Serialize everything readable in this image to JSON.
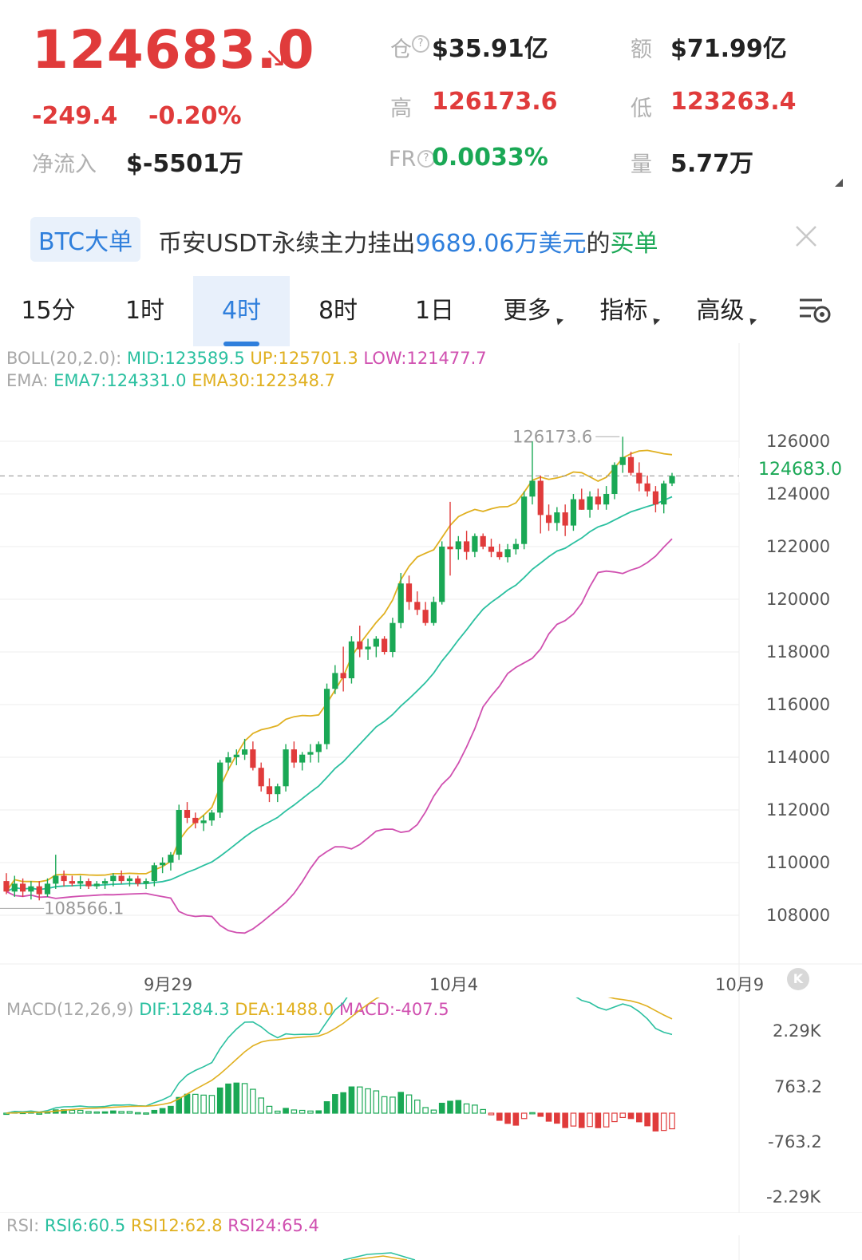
{
  "ticker": {
    "price": "124683.0",
    "arrow": "↘",
    "change": "-249.4",
    "change_pct": "-0.20%",
    "net_inflow_label": "净流入",
    "net_inflow_value": "$-5501万",
    "open_interest_label": "仓",
    "open_interest_value": "$35.91亿",
    "turnover_label": "额",
    "turnover_value": "$71.99亿",
    "high_label": "高",
    "high_value": "126173.6",
    "low_label": "低",
    "low_value": "123263.4",
    "fr_label": "FR",
    "fr_value": "0.0033%",
    "volume_label": "量",
    "volume_value": "5.77万"
  },
  "banner": {
    "tag": "BTC大单",
    "text_prefix": "币安USDT永续主力挂出",
    "amount": "9689.06万美元",
    "text_mid": "的",
    "side": "买单"
  },
  "tabs": [
    "15分",
    "1时",
    "4时",
    "8时",
    "1日",
    "更多",
    "指标",
    "高级"
  ],
  "active_tab": "4时",
  "indicators": {
    "boll_name": "BOLL(20,2.0):",
    "boll_mid": "MID:123589.5",
    "boll_up": "UP:125701.3",
    "boll_low": "LOW:121477.7",
    "ema_name": "EMA:",
    "ema7": "EMA7:124331.0",
    "ema30": "EMA30:122348.7",
    "macd_name": "MACD(12,26,9)",
    "dif": "DIF:1284.3",
    "dea": "DEA:1488.0",
    "macd": "MACD:-407.5",
    "rsi_name": "RSI:",
    "rsi6": "RSI6:60.5",
    "rsi12": "RSI12:62.8",
    "rsi24": "RSI24:65.4"
  },
  "colors": {
    "up": "#1aa855",
    "down": "#e03b3b",
    "boll_mid": "#2bc0a0",
    "boll_up_low": "#e0b020",
    "boll_low": "#d050b0",
    "accent": "#2f7fdc"
  },
  "chart_data": {
    "type": "candlestick",
    "y_ticks": [
      "126000",
      "124000",
      "122000",
      "120000",
      "118000",
      "116000",
      "114000",
      "112000",
      "110000",
      "108000"
    ],
    "ylim": [
      107000,
      127000
    ],
    "x_ticks": [
      "9月29",
      "10月4",
      "10月9"
    ],
    "last_price": "124683.0",
    "high_marker": "126173.6",
    "low_marker": "108566.1",
    "candles": [
      [
        109300,
        109600,
        108800,
        108900
      ],
      [
        108900,
        109500,
        108700,
        109200
      ],
      [
        109200,
        109400,
        108700,
        108900
      ],
      [
        108900,
        109300,
        108600,
        109100
      ],
      [
        109100,
        109300,
        108566,
        108800
      ],
      [
        108800,
        109400,
        108700,
        109200
      ],
      [
        109200,
        110300,
        109000,
        109500
      ],
      [
        109500,
        109700,
        109100,
        109300
      ],
      [
        109300,
        109500,
        109100,
        109200
      ],
      [
        109200,
        109500,
        109000,
        109300
      ],
      [
        109300,
        109400,
        109000,
        109100
      ],
      [
        109100,
        109300,
        109000,
        109200
      ],
      [
        109200,
        109400,
        109000,
        109300
      ],
      [
        109300,
        109600,
        109100,
        109500
      ],
      [
        109500,
        109700,
        109200,
        109300
      ],
      [
        109300,
        109500,
        109100,
        109400
      ],
      [
        109400,
        109500,
        109100,
        109200
      ],
      [
        109200,
        109400,
        109000,
        109300
      ],
      [
        109300,
        110000,
        109100,
        109900
      ],
      [
        109900,
        110200,
        109600,
        110000
      ],
      [
        110000,
        110400,
        109700,
        110300
      ],
      [
        110300,
        112200,
        110100,
        112000
      ],
      [
        112000,
        112300,
        111500,
        111700
      ],
      [
        111700,
        111900,
        111300,
        111500
      ],
      [
        111500,
        111800,
        111200,
        111600
      ],
      [
        111600,
        112000,
        111400,
        111900
      ],
      [
        111900,
        113900,
        111700,
        113800
      ],
      [
        113800,
        114200,
        113500,
        114000
      ],
      [
        114000,
        114300,
        113700,
        114100
      ],
      [
        114100,
        114700,
        113900,
        114300
      ],
      [
        114300,
        114600,
        113500,
        113600
      ],
      [
        113600,
        113800,
        112700,
        112900
      ],
      [
        112900,
        113200,
        112300,
        112600
      ],
      [
        112600,
        113000,
        112300,
        112900
      ],
      [
        112900,
        114500,
        112700,
        114300
      ],
      [
        114300,
        114600,
        113600,
        113800
      ],
      [
        113800,
        114200,
        113500,
        114100
      ],
      [
        114100,
        114500,
        113800,
        114200
      ],
      [
        114200,
        114600,
        113800,
        114500
      ],
      [
        114500,
        116800,
        114300,
        116600
      ],
      [
        116600,
        117500,
        116400,
        117200
      ],
      [
        117200,
        118200,
        116500,
        117000
      ],
      [
        117000,
        118600,
        116800,
        118400
      ],
      [
        118400,
        119000,
        117800,
        118100
      ],
      [
        118100,
        118500,
        117700,
        118200
      ],
      [
        118200,
        118600,
        117800,
        118500
      ],
      [
        118500,
        118600,
        117900,
        118000
      ],
      [
        118000,
        119300,
        117800,
        119100
      ],
      [
        119100,
        121000,
        118900,
        120600
      ],
      [
        120600,
        120900,
        119600,
        119900
      ],
      [
        119900,
        120300,
        119400,
        119600
      ],
      [
        119600,
        119900,
        119000,
        119100
      ],
      [
        119100,
        120100,
        119000,
        119900
      ],
      [
        119900,
        122200,
        119800,
        122000
      ],
      [
        122000,
        123700,
        120900,
        121900
      ],
      [
        121900,
        122400,
        121500,
        122200
      ],
      [
        122200,
        122600,
        121500,
        121800
      ],
      [
        121800,
        122500,
        121600,
        122400
      ],
      [
        122400,
        122500,
        121900,
        122000
      ],
      [
        122000,
        122300,
        121600,
        121800
      ],
      [
        121800,
        122100,
        121500,
        121600
      ],
      [
        121600,
        122100,
        121400,
        121900
      ],
      [
        121900,
        122300,
        121700,
        122100
      ],
      [
        122100,
        124100,
        121900,
        123900
      ],
      [
        123900,
        126000,
        123600,
        124500
      ],
      [
        124500,
        124700,
        122500,
        123200
      ],
      [
        123200,
        123600,
        122600,
        122900
      ],
      [
        122900,
        123500,
        122600,
        123300
      ],
      [
        123300,
        123600,
        122400,
        122800
      ],
      [
        122800,
        124000,
        122600,
        123800
      ],
      [
        123800,
        124200,
        123400,
        123400
      ],
      [
        123400,
        124100,
        123100,
        123900
      ],
      [
        123900,
        124200,
        123400,
        123600
      ],
      [
        123600,
        124300,
        123400,
        124000
      ],
      [
        124000,
        125200,
        123800,
        125100
      ],
      [
        125100,
        126174,
        124800,
        125400
      ],
      [
        125400,
        125600,
        124700,
        124800
      ],
      [
        124800,
        125200,
        124100,
        124400
      ],
      [
        124400,
        124700,
        123900,
        124100
      ],
      [
        124100,
        124300,
        123300,
        123600
      ],
      [
        123600,
        124500,
        123263,
        124400
      ],
      [
        124400,
        124800,
        124300,
        124683
      ]
    ],
    "macd_ticks": [
      "2.29K",
      "763.2",
      "-763.2",
      "-2.29K"
    ],
    "rsi": {
      "rsi6": 60.5,
      "rsi12": 62.8,
      "rsi24": 65.4
    }
  }
}
